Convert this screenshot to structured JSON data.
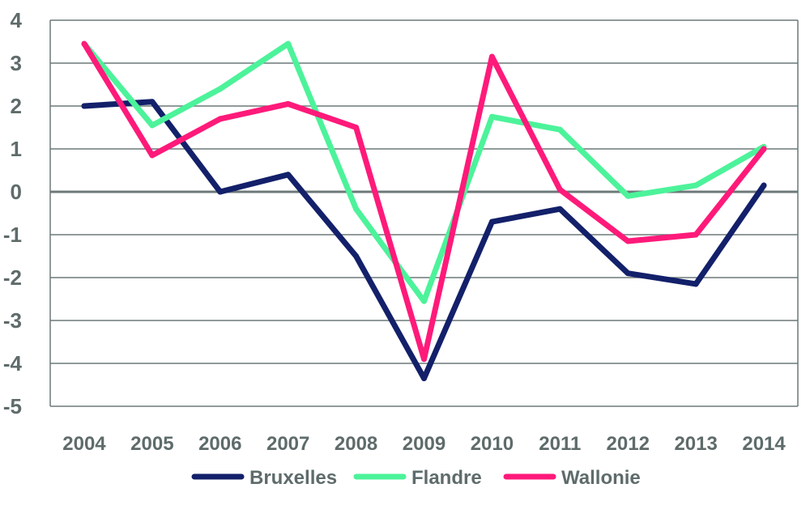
{
  "chart_data": {
    "type": "line",
    "title": "",
    "xlabel": "",
    "ylabel": "",
    "x": [
      "2004",
      "2005",
      "2006",
      "2007",
      "2008",
      "2009",
      "2010",
      "2011",
      "2012",
      "2013",
      "2014"
    ],
    "ylim": [
      -5,
      4
    ],
    "yticks": [
      "4",
      "3",
      "2",
      "1",
      "0",
      "-1",
      "-2",
      "-3",
      "-4",
      "-5"
    ],
    "grid": true,
    "legend_position": "bottom",
    "series": [
      {
        "name": "Bruxelles",
        "color": "#13206a",
        "values": [
          2.0,
          2.1,
          0.0,
          0.4,
          -1.5,
          -4.35,
          -0.7,
          -0.4,
          -1.9,
          -2.15,
          0.15
        ]
      },
      {
        "name": "Flandre",
        "color": "#4cf39a",
        "values": [
          3.45,
          1.55,
          2.4,
          3.45,
          -0.4,
          -2.55,
          1.75,
          1.45,
          -0.1,
          0.15,
          1.05
        ]
      },
      {
        "name": "Wallonie",
        "color": "#ff1a7a",
        "values": [
          3.45,
          0.85,
          1.7,
          2.05,
          1.5,
          -3.9,
          3.15,
          0.05,
          -1.15,
          -1.0,
          1.0
        ]
      }
    ]
  }
}
